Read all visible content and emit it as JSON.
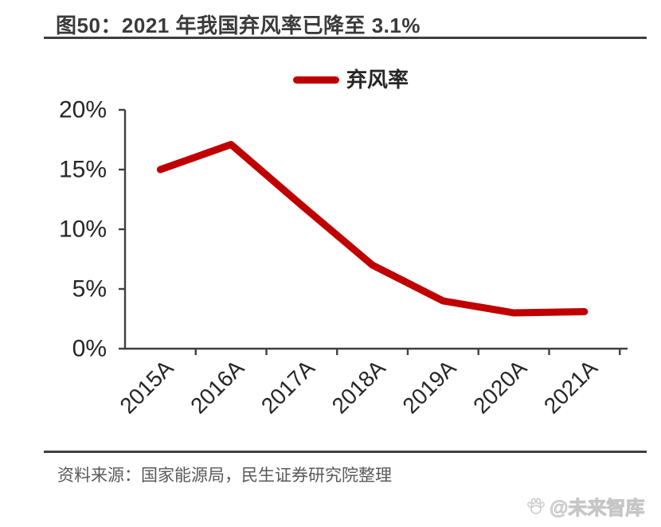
{
  "header": {
    "title": "图50：2021 年我国弃风率已降至 3.1%"
  },
  "legend": {
    "label": "弃风率"
  },
  "footer": {
    "source": "资料来源：国家能源局，民生证券研究院整理",
    "watermark": "@未来智库"
  },
  "colors": {
    "line": "#c00000",
    "axis": "#404040",
    "tick_label": "#262626",
    "title": "#3a3a3a",
    "source": "#595959",
    "watermark": "#c6c6c6"
  },
  "chart_data": {
    "type": "line",
    "categories": [
      "2015A",
      "2016A",
      "2017A",
      "2018A",
      "2019A",
      "2020A",
      "2021A"
    ],
    "series": [
      {
        "name": "弃风率",
        "values": [
          15.0,
          17.1,
          12.0,
          7.0,
          4.0,
          3.0,
          3.1
        ]
      }
    ],
    "title": "图50：2021 年我国弃风率已降至 3.1%",
    "xlabel": "",
    "ylabel": "",
    "ylim": [
      0,
      20
    ],
    "ytick_step": 5,
    "ytick_labels": [
      "0%",
      "5%",
      "10%",
      "15%",
      "20%"
    ],
    "grid": false,
    "legend_position": "top"
  }
}
